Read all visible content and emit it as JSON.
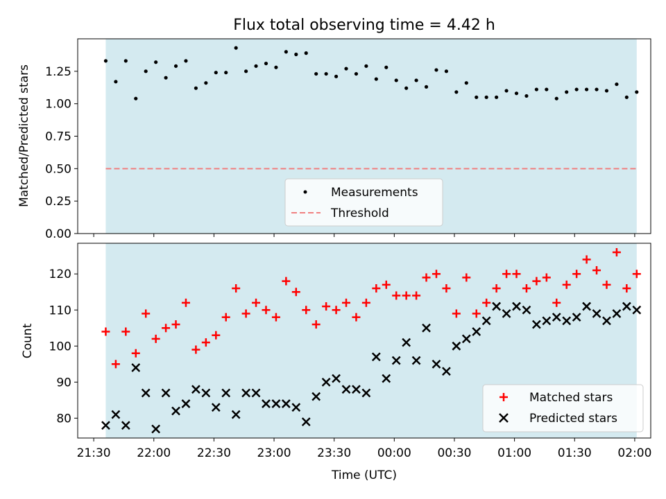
{
  "chart_data": [
    {
      "type": "scatter",
      "title": "Flux total observing time = 4.42 h",
      "xlabel": "",
      "ylabel": "Matched/Predicted stars",
      "ylim": [
        0,
        1.5
      ],
      "yticks": [
        "0.00",
        "0.25",
        "0.50",
        "0.75",
        "1.00",
        "1.25"
      ],
      "shaded_band": {
        "color": "#d4eaf0",
        "x_start": "21:36",
        "x_end": "02:01"
      },
      "threshold": 0.5,
      "legend_location": "lower-center",
      "legend": [
        "Measurements",
        "Threshold"
      ],
      "series": [
        {
          "name": "Measurements",
          "color": "#000000",
          "marker": "dot",
          "x": [
            "21:36",
            "21:41",
            "21:46",
            "21:51",
            "21:56",
            "22:01",
            "22:06",
            "22:11",
            "22:16",
            "22:21",
            "22:26",
            "22:31",
            "22:36",
            "22:41",
            "22:46",
            "22:51",
            "22:56",
            "23:01",
            "23:06",
            "23:11",
            "23:16",
            "23:21",
            "23:26",
            "23:31",
            "23:36",
            "23:41",
            "23:46",
            "23:51",
            "23:56",
            "00:01",
            "00:06",
            "00:11",
            "00:16",
            "00:21",
            "00:26",
            "00:31",
            "00:36",
            "00:41",
            "00:46",
            "00:51",
            "00:56",
            "01:01",
            "01:06",
            "01:11",
            "01:16",
            "01:21",
            "01:26",
            "01:31",
            "01:36",
            "01:41",
            "01:46",
            "01:51",
            "01:56",
            "02:01"
          ],
          "values": [
            1.33,
            1.17,
            1.33,
            1.04,
            1.25,
            1.32,
            1.2,
            1.29,
            1.33,
            1.12,
            1.16,
            1.24,
            1.24,
            1.43,
            1.25,
            1.29,
            1.31,
            1.28,
            1.4,
            1.38,
            1.39,
            1.23,
            1.23,
            1.21,
            1.27,
            1.23,
            1.29,
            1.19,
            1.28,
            1.18,
            1.12,
            1.18,
            1.13,
            1.26,
            1.25,
            1.09,
            1.16,
            1.05,
            1.05,
            1.05,
            1.1,
            1.08,
            1.06,
            1.11,
            1.11,
            1.04,
            1.09,
            1.11,
            1.11,
            1.11,
            1.1,
            1.15,
            1.05,
            1.09
          ]
        },
        {
          "name": "Threshold",
          "color": "#f08080",
          "style": "dashed",
          "values": [
            0.5
          ]
        }
      ]
    },
    {
      "type": "scatter",
      "title": "",
      "xlabel": "Time (UTC)",
      "ylabel": "Count",
      "ylim": [
        74.5,
        128.5
      ],
      "yticks": [
        "80",
        "90",
        "100",
        "110",
        "120"
      ],
      "xlim": [
        "21:22",
        "02:08"
      ],
      "xticks": [
        "21:30",
        "22:00",
        "22:30",
        "23:00",
        "23:30",
        "00:00",
        "00:30",
        "01:00",
        "01:30",
        "02:00"
      ],
      "shaded_band": {
        "color": "#d4eaf0",
        "x_start": "21:36",
        "x_end": "02:01"
      },
      "legend_location": "lower-right",
      "legend": [
        "Matched stars",
        "Predicted stars"
      ],
      "series": [
        {
          "name": "Matched stars",
          "color": "#ff0000",
          "marker": "plus",
          "x": [
            "21:36",
            "21:41",
            "21:46",
            "21:51",
            "21:56",
            "22:01",
            "22:06",
            "22:11",
            "22:16",
            "22:21",
            "22:26",
            "22:31",
            "22:36",
            "22:41",
            "22:46",
            "22:51",
            "22:56",
            "23:01",
            "23:06",
            "23:11",
            "23:16",
            "23:21",
            "23:26",
            "23:31",
            "23:36",
            "23:41",
            "23:46",
            "23:51",
            "23:56",
            "00:01",
            "00:06",
            "00:11",
            "00:16",
            "00:21",
            "00:26",
            "00:31",
            "00:36",
            "00:41",
            "00:46",
            "00:51",
            "00:56",
            "01:01",
            "01:06",
            "01:11",
            "01:16",
            "01:21",
            "01:26",
            "01:31",
            "01:36",
            "01:41",
            "01:46",
            "01:51",
            "01:56",
            "02:01"
          ],
          "values": [
            104,
            95,
            104,
            98,
            109,
            102,
            105,
            106,
            112,
            99,
            101,
            103,
            108,
            116,
            109,
            112,
            110,
            108,
            118,
            115,
            110,
            106,
            111,
            110,
            112,
            108,
            112,
            116,
            117,
            114,
            114,
            114,
            119,
            120,
            116,
            109,
            119,
            109,
            112,
            116,
            120,
            120,
            116,
            118,
            119,
            112,
            117,
            120,
            124,
            121,
            117,
            126,
            116,
            120
          ]
        },
        {
          "name": "Predicted stars",
          "color": "#000000",
          "marker": "x",
          "x": [
            "21:36",
            "21:41",
            "21:46",
            "21:51",
            "21:56",
            "22:01",
            "22:06",
            "22:11",
            "22:16",
            "22:21",
            "22:26",
            "22:31",
            "22:36",
            "22:41",
            "22:46",
            "22:51",
            "22:56",
            "23:01",
            "23:06",
            "23:11",
            "23:16",
            "23:21",
            "23:26",
            "23:31",
            "23:36",
            "23:41",
            "23:46",
            "23:51",
            "23:56",
            "00:01",
            "00:06",
            "00:11",
            "00:16",
            "00:21",
            "00:26",
            "00:31",
            "00:36",
            "00:41",
            "00:46",
            "00:51",
            "00:56",
            "01:01",
            "01:06",
            "01:11",
            "01:16",
            "01:21",
            "01:26",
            "01:31",
            "01:36",
            "01:41",
            "01:46",
            "01:51",
            "01:56",
            "02:01"
          ],
          "values": [
            78,
            81,
            78,
            94,
            87,
            77,
            87,
            82,
            84,
            88,
            87,
            83,
            87,
            81,
            87,
            87,
            84,
            84,
            84,
            83,
            79,
            86,
            90,
            91,
            88,
            88,
            87,
            97,
            91,
            96,
            101,
            96,
            105,
            95,
            93,
            100,
            102,
            104,
            107,
            111,
            109,
            111,
            110,
            106,
            107,
            108,
            107,
            108,
            111,
            109,
            107,
            109,
            111,
            110
          ]
        }
      ]
    }
  ]
}
